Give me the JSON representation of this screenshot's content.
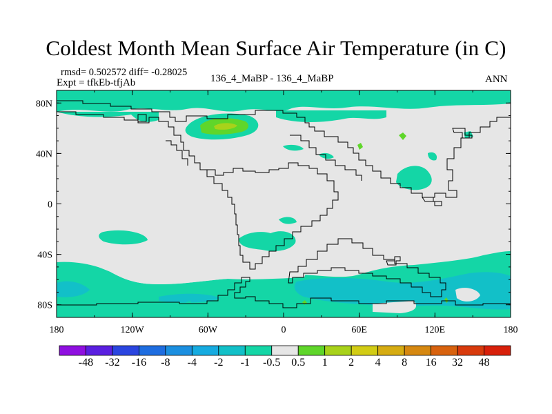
{
  "title": "Coldest Month Mean Surface Air Temperature (in C)",
  "stats_line": "rmsd= 0.502572 diff= -0.28025",
  "experiment_line": "Expt = tfkEb-tfjAb",
  "case_line": "136_4_MaBP - 136_4_MaBP",
  "season": "ANN",
  "map": {
    "projection": "cylindrical equidistant",
    "lon_range": [
      -180,
      180
    ],
    "lat_range": [
      -90,
      90
    ],
    "lat_ticks": [
      {
        "value": 80,
        "label": "80N"
      },
      {
        "value": 40,
        "label": "40N"
      },
      {
        "value": 0,
        "label": "0"
      },
      {
        "value": -40,
        "label": "40S"
      },
      {
        "value": -80,
        "label": "80S"
      }
    ],
    "lon_ticks": [
      {
        "value": -180,
        "label": "180"
      },
      {
        "value": -120,
        "label": "120W"
      },
      {
        "value": -60,
        "label": "60W"
      },
      {
        "value": 0,
        "label": "0"
      },
      {
        "value": 60,
        "label": "60E"
      },
      {
        "value": 120,
        "label": "120E"
      },
      {
        "value": 180,
        "label": "180"
      }
    ],
    "background_color": "#e6e6e6"
  },
  "colorbar": {
    "levels": [
      "-48",
      "-32",
      "-16",
      "-8",
      "-4",
      "-2",
      "-1",
      "-0.5",
      "0.5",
      "1",
      "2",
      "4",
      "8",
      "16",
      "32",
      "48"
    ],
    "colors": [
      "#8f0fe0",
      "#5a1fe0",
      "#2a45e0",
      "#1e6de0",
      "#1b8fe0",
      "#16abe0",
      "#12c0c8",
      "#14d6a6",
      "#e6e6e6",
      "#5fd62a",
      "#a8d21a",
      "#d2cc14",
      "#d6ac12",
      "#d68810",
      "#d8620e",
      "#d83a0c",
      "#d8200a"
    ]
  }
}
